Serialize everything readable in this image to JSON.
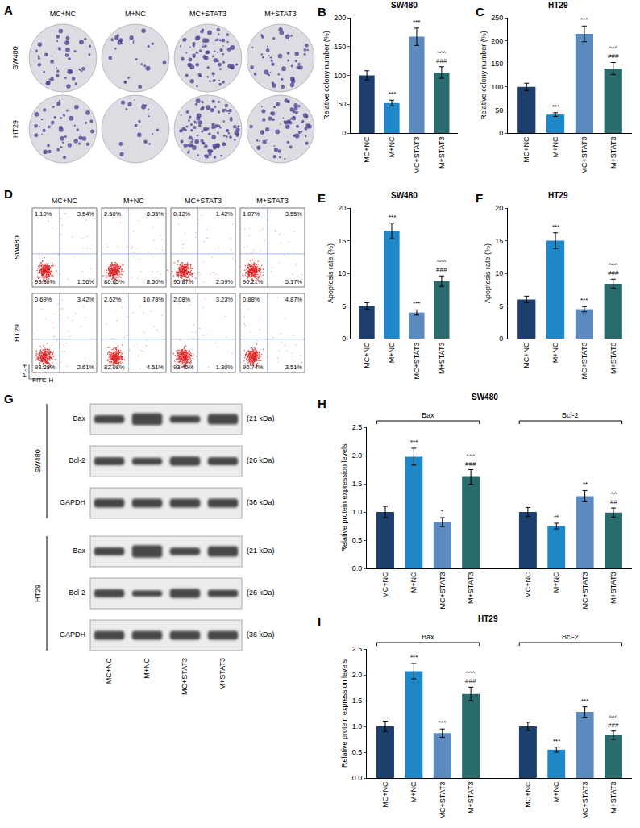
{
  "chart_data": [
    {
      "panel": "B",
      "type": "bar",
      "title": "SW480",
      "y_label": "Relative colony number (%)",
      "categories": [
        "MC+NC",
        "M+NC",
        "MC+STAT3",
        "M+STAT3"
      ],
      "values": [
        100,
        52,
        167,
        105
      ],
      "errors": [
        8,
        5,
        15,
        10
      ],
      "marks": [
        null,
        [
          "***"
        ],
        [
          "***"
        ],
        [
          "^^^",
          "###"
        ]
      ],
      "colors": [
        "#1c3f6e",
        "#1e88c8",
        "#5b8bbf",
        "#2a6b6e"
      ],
      "ylim": [
        0,
        200
      ],
      "yticks": [
        0,
        50,
        100,
        150,
        200
      ]
    },
    {
      "panel": "C",
      "type": "bar",
      "title": "HT29",
      "y_label": "Relative colony number (%)",
      "categories": [
        "MC+NC",
        "M+NC",
        "MC+STAT3",
        "M+STAT3"
      ],
      "values": [
        100,
        40,
        215,
        140
      ],
      "errors": [
        8,
        4,
        17,
        13
      ],
      "marks": [
        null,
        [
          "***"
        ],
        [
          "***"
        ],
        [
          "^^^",
          "###"
        ]
      ],
      "colors": [
        "#1c3f6e",
        "#1e88c8",
        "#5b8bbf",
        "#2a6b6e"
      ],
      "ylim": [
        0,
        250
      ],
      "yticks": [
        0,
        50,
        100,
        150,
        200,
        250
      ]
    },
    {
      "panel": "E",
      "type": "bar",
      "title": "SW480",
      "y_label": "Apoptosis rate (%)",
      "categories": [
        "MC+NC",
        "M+NC",
        "MC+STAT3",
        "M+STAT3"
      ],
      "values": [
        5.0,
        16.5,
        4.0,
        8.8
      ],
      "errors": [
        0.5,
        1.2,
        0.4,
        0.8
      ],
      "marks": [
        null,
        [
          "***"
        ],
        [
          "***"
        ],
        [
          "^^^",
          "###"
        ]
      ],
      "colors": [
        "#1c3f6e",
        "#1e88c8",
        "#5b8bbf",
        "#2a6b6e"
      ],
      "ylim": [
        0,
        20
      ],
      "yticks": [
        0,
        5,
        10,
        15,
        20
      ]
    },
    {
      "panel": "F",
      "type": "bar",
      "title": "HT29",
      "y_label": "Apoptosis rate (%)",
      "categories": [
        "MC+NC",
        "M+NC",
        "MC+STAT3",
        "M+STAT3"
      ],
      "values": [
        6.0,
        15.0,
        4.5,
        8.4
      ],
      "errors": [
        0.5,
        1.2,
        0.4,
        0.7
      ],
      "marks": [
        null,
        [
          "***"
        ],
        [
          "***"
        ],
        [
          "^^^",
          "###"
        ]
      ],
      "colors": [
        "#1c3f6e",
        "#1e88c8",
        "#5b8bbf",
        "#2a6b6e"
      ],
      "ylim": [
        0,
        20
      ],
      "yticks": [
        0,
        5,
        10,
        15,
        20
      ]
    },
    {
      "panel": "H",
      "type": "bar",
      "title": "SW480",
      "y_label": "Relative protein expression levels",
      "categories": [
        "MC+NC",
        "M+NC",
        "MC+STAT3",
        "M+STAT3"
      ],
      "colors": [
        "#1c3f6e",
        "#1e88c8",
        "#5b8bbf",
        "#2a6b6e"
      ],
      "groups": [
        {
          "name": "Bax",
          "values": [
            1.0,
            1.98,
            0.82,
            1.62
          ],
          "errors": [
            0.1,
            0.15,
            0.08,
            0.13
          ],
          "marks": [
            null,
            [
              "***"
            ],
            [
              "*"
            ],
            [
              "^^^",
              "###"
            ]
          ]
        },
        {
          "name": "Bcl-2",
          "values": [
            1.0,
            0.75,
            1.28,
            0.99
          ],
          "errors": [
            0.08,
            0.05,
            0.1,
            0.08
          ],
          "marks": [
            null,
            [
              "**"
            ],
            [
              "**"
            ],
            [
              "^^",
              "##"
            ]
          ]
        }
      ],
      "ylim": [
        0,
        2.5
      ],
      "yticks": [
        {
          "value": 0,
          "label": "0.0"
        },
        0.5,
        {
          "value": 1,
          "label": "1.0"
        },
        1.5,
        {
          "value": 2,
          "label": "2.0"
        },
        2.5
      ]
    },
    {
      "panel": "I",
      "type": "bar",
      "title": "HT29",
      "y_label": "Relative protein expression levels",
      "categories": [
        "MC+NC",
        "M+NC",
        "MC+STAT3",
        "M+STAT3"
      ],
      "colors": [
        "#1c3f6e",
        "#1e88c8",
        "#5b8bbf",
        "#2a6b6e"
      ],
      "groups": [
        {
          "name": "Bax",
          "values": [
            1.0,
            2.07,
            0.87,
            1.63
          ],
          "errors": [
            0.1,
            0.15,
            0.08,
            0.13
          ],
          "marks": [
            null,
            [
              "***"
            ],
            [
              "***"
            ],
            [
              "^^^",
              "###"
            ]
          ]
        },
        {
          "name": "Bcl-2",
          "values": [
            1.0,
            0.55,
            1.28,
            0.83
          ],
          "errors": [
            0.08,
            0.05,
            0.1,
            0.08
          ],
          "marks": [
            null,
            [
              "***"
            ],
            [
              "***"
            ],
            [
              "^^^",
              "###"
            ]
          ]
        }
      ],
      "ylim": [
        0,
        2.5
      ],
      "yticks": [
        {
          "value": 0,
          "label": "0.0"
        },
        0.5,
        {
          "value": 1,
          "label": "1.0"
        },
        1.5,
        {
          "value": 2,
          "label": "2.0"
        },
        2.5
      ]
    }
  ],
  "panels": {
    "A": {
      "label": "A",
      "columns": [
        "MC+NC",
        "M+NC",
        "MC+STAT3",
        "M+STAT3"
      ],
      "rows": [
        "SW480",
        "HT29"
      ]
    },
    "D": {
      "label": "D",
      "columns": [
        "MC+NC",
        "M+NC",
        "MC+STAT3",
        "M+STAT3"
      ],
      "x_label": "FITC-H",
      "y_label": "PI-H",
      "rows": [
        {
          "name": "SW480",
          "quadrants": [
            [
              "1.10%",
              "3.54%",
              "93.80%",
              "1.56%"
            ],
            [
              "2.50%",
              "8.35%",
              "80.65%",
              "8.50%"
            ],
            [
              "0.12%",
              "1.42%",
              "95.87%",
              "2.59%"
            ],
            [
              "1.07%",
              "3.55%",
              "90.21%",
              "5.17%"
            ]
          ]
        },
        {
          "name": "HT29",
          "quadrants": [
            [
              "0.69%",
              "3.42%",
              "93.28%",
              "2.61%"
            ],
            [
              "2.62%",
              "10.78%",
              "82.08%",
              "4.51%"
            ],
            [
              "2.08%",
              "3.23%",
              "93.40%",
              "1.30%"
            ],
            [
              "0.88%",
              "4.87%",
              "90.74%",
              "3.51%"
            ]
          ]
        }
      ]
    },
    "G": {
      "label": "G",
      "lanes": [
        "MC+NC",
        "M+NC",
        "MC+STAT3",
        "M+STAT3"
      ],
      "rows": [
        {
          "cell_line": "SW480",
          "proteins": [
            {
              "name": "Bax",
              "size": "(21 kDa)"
            },
            {
              "name": "Bcl-2",
              "size": "(26 kDa)"
            },
            {
              "name": "GAPDH",
              "size": "(36 kDa)"
            }
          ]
        },
        {
          "cell_line": "HT29",
          "proteins": [
            {
              "name": "Bax",
              "size": "(21 kDa)"
            },
            {
              "name": "Bcl-2",
              "size": "(26 kDa)"
            },
            {
              "name": "GAPDH",
              "size": "(36 kDa)"
            }
          ]
        }
      ]
    }
  }
}
